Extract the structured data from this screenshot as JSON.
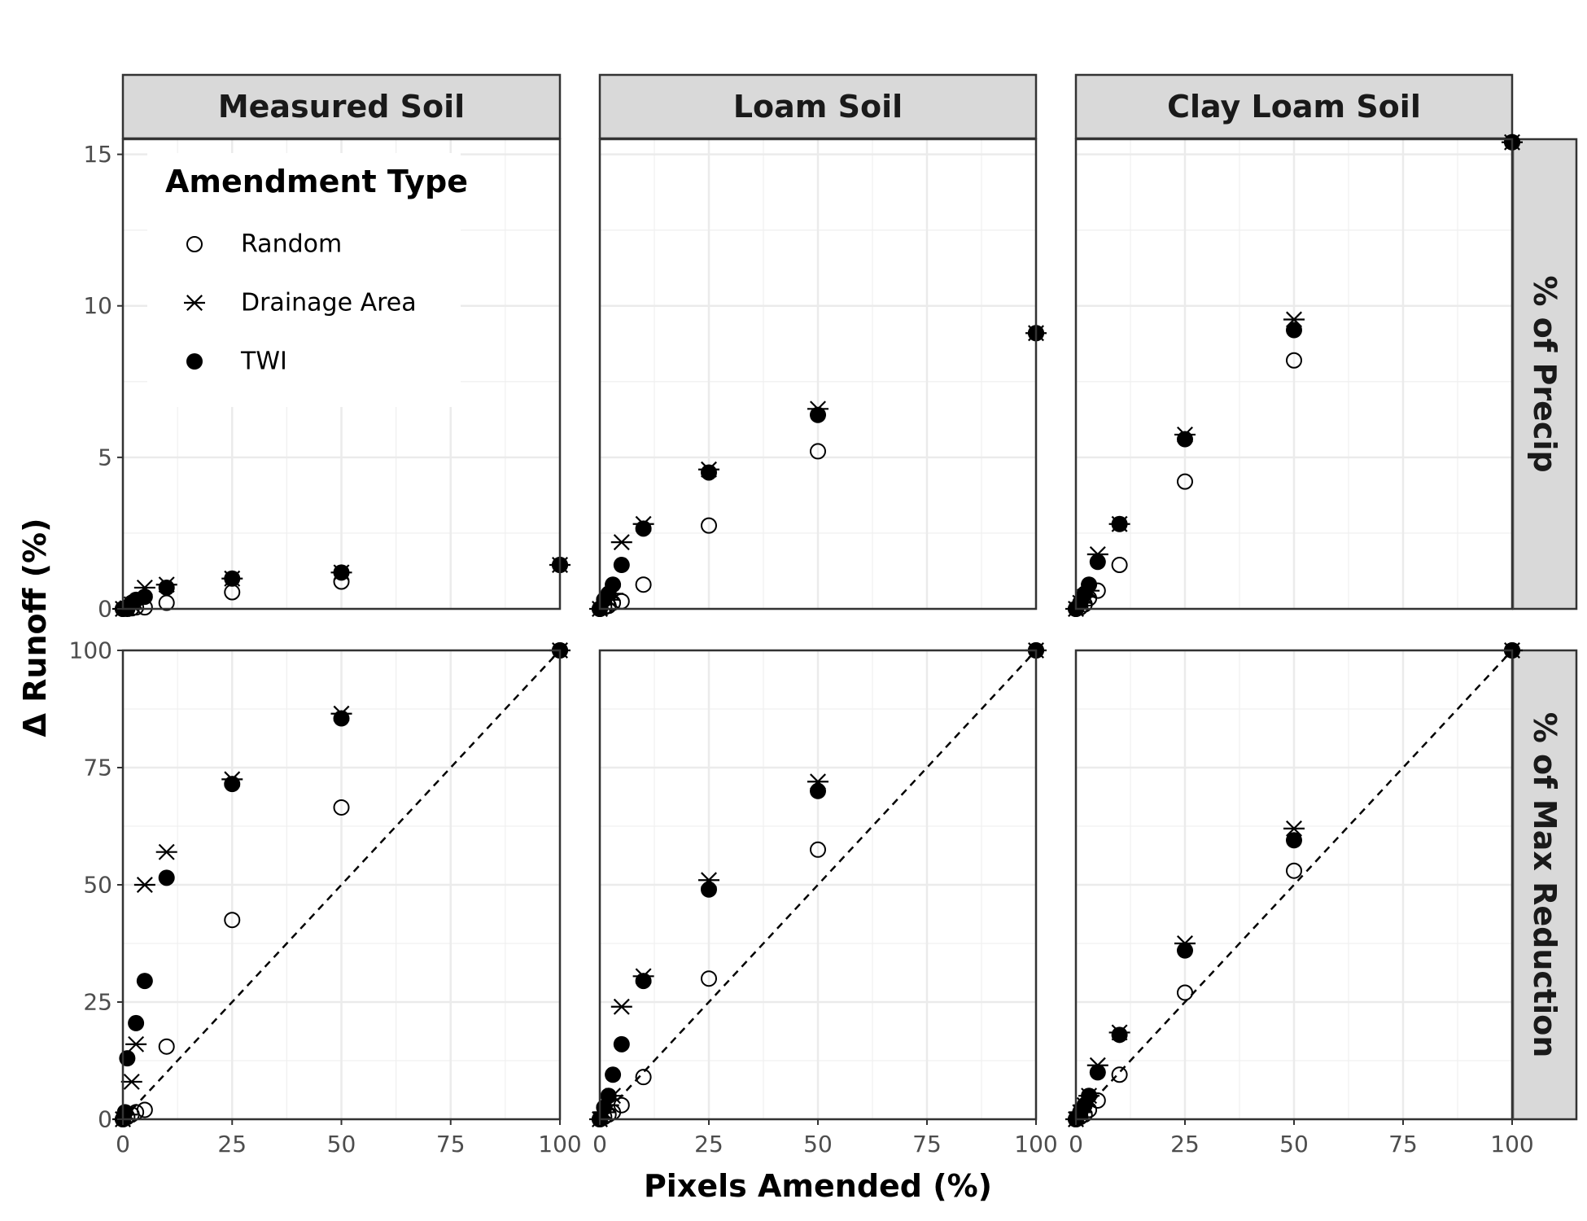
{
  "chart_data": {
    "type": "scatter",
    "xlabel": "Pixels Amended (%)",
    "ylabel": "Δ Runoff (%)",
    "columns": [
      "Measured Soil",
      "Loam Soil",
      "Clay Loam Soil"
    ],
    "rows": [
      "% of Precip",
      "% of Max Reduction"
    ],
    "x_ticks": [
      0,
      25,
      50,
      75,
      100
    ],
    "xlim": [
      0,
      100
    ],
    "row_axes": [
      {
        "ylim": [
          0,
          15.5
        ],
        "ticks": [
          0,
          5,
          10,
          15
        ]
      },
      {
        "ylim": [
          0,
          100
        ],
        "ticks": [
          0,
          25,
          50,
          75,
          100
        ]
      }
    ],
    "legend": {
      "title": "Amendment Type",
      "placement": "top-left",
      "entries": [
        {
          "name": "Random",
          "shape": "open-circle"
        },
        {
          "name": "Drainage Area",
          "shape": "asterisk"
        },
        {
          "name": "TWI",
          "shape": "filled-circle"
        }
      ]
    },
    "reference_line": {
      "style": "dashed",
      "from": [
        0,
        0
      ],
      "to": [
        100,
        100
      ],
      "rows": [
        "% of Max Reduction"
      ]
    },
    "panels": [
      {
        "row": "% of Precip",
        "column": "Measured Soil",
        "series": [
          {
            "name": "Random",
            "points": [
              [
                0,
                0
              ],
              [
                1,
                0
              ],
              [
                2,
                0.02
              ],
              [
                3,
                0.05
              ],
              [
                5,
                0.05
              ],
              [
                10,
                0.2
              ],
              [
                25,
                0.55
              ],
              [
                50,
                0.9
              ],
              [
                100,
                1.45
              ]
            ]
          },
          {
            "name": "Drainage Area",
            "points": [
              [
                0,
                0
              ],
              [
                1,
                0.02
              ],
              [
                2,
                0.15
              ],
              [
                3,
                0.2
              ],
              [
                5,
                0.7
              ],
              [
                10,
                0.8
              ],
              [
                25,
                1.0
              ],
              [
                50,
                1.2
              ],
              [
                100,
                1.45
              ]
            ]
          },
          {
            "name": "TWI",
            "points": [
              [
                0,
                0
              ],
              [
                1,
                0.05
              ],
              [
                2,
                0.2
              ],
              [
                3,
                0.3
              ],
              [
                5,
                0.4
              ],
              [
                10,
                0.7
              ],
              [
                25,
                1.0
              ],
              [
                50,
                1.2
              ],
              [
                100,
                1.45
              ]
            ]
          }
        ]
      },
      {
        "row": "% of Precip",
        "column": "Loam Soil",
        "series": [
          {
            "name": "Random",
            "points": [
              [
                0,
                0
              ],
              [
                1,
                0.05
              ],
              [
                2,
                0.1
              ],
              [
                3,
                0.2
              ],
              [
                5,
                0.25
              ],
              [
                10,
                0.8
              ],
              [
                25,
                2.75
              ],
              [
                50,
                5.2
              ],
              [
                100,
                9.1
              ]
            ]
          },
          {
            "name": "Drainage Area",
            "points": [
              [
                0,
                0
              ],
              [
                1,
                0.15
              ],
              [
                2,
                0.3
              ],
              [
                3,
                0.5
              ],
              [
                5,
                2.2
              ],
              [
                10,
                2.8
              ],
              [
                25,
                4.6
              ],
              [
                50,
                6.6
              ],
              [
                100,
                9.1
              ]
            ]
          },
          {
            "name": "TWI",
            "points": [
              [
                0,
                0
              ],
              [
                1,
                0.3
              ],
              [
                2,
                0.5
              ],
              [
                3,
                0.8
              ],
              [
                5,
                1.45
              ],
              [
                10,
                2.65
              ],
              [
                25,
                4.5
              ],
              [
                50,
                6.4
              ],
              [
                100,
                9.1
              ]
            ]
          }
        ]
      },
      {
        "row": "% of Precip",
        "column": "Clay Loam Soil",
        "series": [
          {
            "name": "Random",
            "points": [
              [
                0,
                0
              ],
              [
                1,
                0.05
              ],
              [
                2,
                0.15
              ],
              [
                3,
                0.35
              ],
              [
                5,
                0.6
              ],
              [
                10,
                1.45
              ],
              [
                25,
                4.2
              ],
              [
                50,
                8.2
              ],
              [
                100,
                15.4
              ]
            ]
          },
          {
            "name": "Drainage Area",
            "points": [
              [
                0,
                0
              ],
              [
                1,
                0.2
              ],
              [
                2,
                0.4
              ],
              [
                3,
                0.6
              ],
              [
                5,
                1.8
              ],
              [
                10,
                2.8
              ],
              [
                25,
                5.75
              ],
              [
                50,
                9.55
              ],
              [
                100,
                15.4
              ]
            ]
          },
          {
            "name": "TWI",
            "points": [
              [
                0,
                0
              ],
              [
                1,
                0.2
              ],
              [
                2,
                0.5
              ],
              [
                3,
                0.8
              ],
              [
                5,
                1.55
              ],
              [
                10,
                2.8
              ],
              [
                25,
                5.6
              ],
              [
                50,
                9.2
              ],
              [
                100,
                15.4
              ]
            ]
          }
        ]
      },
      {
        "row": "% of Max Reduction",
        "column": "Measured Soil",
        "series": [
          {
            "name": "Random",
            "points": [
              [
                0,
                0
              ],
              [
                1,
                0.5
              ],
              [
                2,
                1
              ],
              [
                3,
                1.5
              ],
              [
                5,
                2
              ],
              [
                10,
                15.5
              ],
              [
                25,
                42.5
              ],
              [
                50,
                66.5
              ],
              [
                100,
                100
              ]
            ]
          },
          {
            "name": "Drainage Area",
            "points": [
              [
                0,
                0
              ],
              [
                1,
                1
              ],
              [
                2,
                8
              ],
              [
                3,
                16
              ],
              [
                5,
                50
              ],
              [
                10,
                57
              ],
              [
                25,
                72.5
              ],
              [
                50,
                86.5
              ],
              [
                100,
                100
              ]
            ]
          },
          {
            "name": "TWI",
            "points": [
              [
                0,
                0
              ],
              [
                0.5,
                1.5
              ],
              [
                1,
                13
              ],
              [
                3,
                20.5
              ],
              [
                5,
                29.5
              ],
              [
                10,
                51.5
              ],
              [
                25,
                71.5
              ],
              [
                50,
                85.5
              ],
              [
                100,
                100
              ]
            ]
          }
        ]
      },
      {
        "row": "% of Max Reduction",
        "column": "Loam Soil",
        "series": [
          {
            "name": "Random",
            "points": [
              [
                0,
                0
              ],
              [
                1,
                0.5
              ],
              [
                2,
                1
              ],
              [
                3,
                1.5
              ],
              [
                5,
                3
              ],
              [
                10,
                9
              ],
              [
                25,
                30
              ],
              [
                50,
                57.5
              ],
              [
                100,
                100
              ]
            ]
          },
          {
            "name": "Drainage Area",
            "points": [
              [
                0,
                0
              ],
              [
                1,
                1.5
              ],
              [
                2,
                3
              ],
              [
                3,
                5
              ],
              [
                5,
                24
              ],
              [
                10,
                30.5
              ],
              [
                25,
                51
              ],
              [
                50,
                72
              ],
              [
                100,
                100
              ]
            ]
          },
          {
            "name": "TWI",
            "points": [
              [
                0,
                0
              ],
              [
                1,
                2.5
              ],
              [
                2,
                5
              ],
              [
                3,
                9.5
              ],
              [
                5,
                16
              ],
              [
                10,
                29.5
              ],
              [
                25,
                49
              ],
              [
                50,
                70
              ],
              [
                100,
                100
              ]
            ]
          }
        ]
      },
      {
        "row": "% of Max Reduction",
        "column": "Clay Loam Soil",
        "series": [
          {
            "name": "Random",
            "points": [
              [
                0,
                0
              ],
              [
                1,
                0.5
              ],
              [
                2,
                1
              ],
              [
                3,
                2
              ],
              [
                5,
                4
              ],
              [
                10,
                9.5
              ],
              [
                25,
                27
              ],
              [
                50,
                53
              ],
              [
                100,
                100
              ]
            ]
          },
          {
            "name": "Drainage Area",
            "points": [
              [
                0,
                0
              ],
              [
                1,
                1.5
              ],
              [
                2,
                3
              ],
              [
                3,
                5
              ],
              [
                5,
                11.5
              ],
              [
                10,
                18.5
              ],
              [
                25,
                37.5
              ],
              [
                50,
                62
              ],
              [
                100,
                100
              ]
            ]
          },
          {
            "name": "TWI",
            "points": [
              [
                0,
                0
              ],
              [
                1,
                1.5
              ],
              [
                2,
                3
              ],
              [
                3,
                5
              ],
              [
                5,
                10
              ],
              [
                10,
                18
              ],
              [
                25,
                36
              ],
              [
                50,
                59.5
              ],
              [
                100,
                100
              ]
            ]
          }
        ]
      }
    ]
  }
}
